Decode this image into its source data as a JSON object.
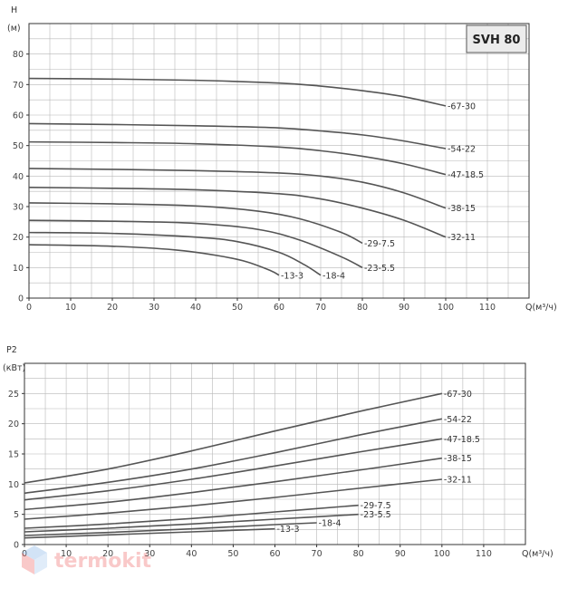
{
  "chart_data": [
    {
      "type": "line",
      "title": "SVH 80",
      "ylabel": "H",
      "yunit": "(м)",
      "xlabel": "Q(м³/ч)",
      "xlim": [
        0,
        120
      ],
      "ylim": [
        0,
        90
      ],
      "xticks": [
        0,
        10,
        20,
        30,
        40,
        50,
        60,
        70,
        80,
        90,
        100,
        110
      ],
      "yticks": [
        0,
        10,
        20,
        30,
        40,
        50,
        60,
        70,
        80
      ],
      "grid": true,
      "series": [
        {
          "name": "67-30",
          "x": [
            0,
            20,
            40,
            60,
            70,
            80,
            90,
            100
          ],
          "y": [
            72,
            71.8,
            71.4,
            70.5,
            69.5,
            68,
            66,
            63
          ]
        },
        {
          "name": "54-22",
          "x": [
            0,
            20,
            40,
            60,
            70,
            80,
            90,
            100
          ],
          "y": [
            57.2,
            56.9,
            56.5,
            55.8,
            54.8,
            53.5,
            51.5,
            49
          ]
        },
        {
          "name": "47-18.5",
          "x": [
            0,
            20,
            40,
            60,
            70,
            80,
            90,
            100
          ],
          "y": [
            51.2,
            51,
            50.6,
            49.5,
            48.3,
            46.5,
            44,
            40.5
          ]
        },
        {
          "name": "38-15",
          "x": [
            0,
            20,
            40,
            60,
            70,
            80,
            90,
            100
          ],
          "y": [
            42.5,
            42.2,
            41.8,
            41,
            40,
            38,
            34.5,
            29.5
          ]
        },
        {
          "name": "32-11",
          "x": [
            0,
            20,
            40,
            60,
            70,
            80,
            90,
            100
          ],
          "y": [
            36.3,
            36,
            35.5,
            34.2,
            32.5,
            29.5,
            25.5,
            20
          ]
        },
        {
          "name": "29-7.5",
          "x": [
            0,
            20,
            40,
            55,
            65,
            75,
            80
          ],
          "y": [
            31.2,
            30.9,
            30.2,
            28.5,
            26,
            21.5,
            18
          ]
        },
        {
          "name": "23-5.5",
          "x": [
            0,
            20,
            40,
            55,
            65,
            75,
            80
          ],
          "y": [
            25.5,
            25.2,
            24.5,
            22.5,
            19,
            13.5,
            10
          ]
        },
        {
          "name": "18-4",
          "x": [
            0,
            20,
            40,
            50,
            60,
            66,
            70
          ],
          "y": [
            21.5,
            21.2,
            20,
            18.5,
            15,
            11,
            7.5
          ]
        },
        {
          "name": "13-3",
          "x": [
            0,
            20,
            35,
            45,
            52,
            58,
            60
          ],
          "y": [
            17.5,
            17,
            15.8,
            14,
            12,
            9,
            7.5
          ]
        }
      ]
    },
    {
      "type": "line",
      "title": "",
      "ylabel": "P2",
      "yunit": "(кВт)",
      "xlabel": "Q(м³/ч)",
      "xlim": [
        0,
        120
      ],
      "ylim": [
        0,
        30
      ],
      "xticks": [
        0,
        10,
        20,
        30,
        40,
        50,
        60,
        70,
        80,
        90,
        100,
        110
      ],
      "yticks": [
        0,
        5,
        10,
        15,
        20,
        25
      ],
      "grid": true,
      "series": [
        {
          "name": "67-30",
          "x": [
            0,
            20,
            40,
            60,
            80,
            100
          ],
          "y": [
            10.2,
            12.5,
            15.5,
            18.8,
            22,
            25
          ]
        },
        {
          "name": "54-22",
          "x": [
            0,
            20,
            40,
            60,
            80,
            100
          ],
          "y": [
            8.5,
            10.3,
            12.5,
            15.2,
            18.1,
            20.8
          ]
        },
        {
          "name": "47-18.5",
          "x": [
            0,
            20,
            40,
            60,
            80,
            100
          ],
          "y": [
            7.4,
            8.9,
            10.8,
            13,
            15.3,
            17.5
          ]
        },
        {
          "name": "38-15",
          "x": [
            0,
            20,
            40,
            60,
            80,
            100
          ],
          "y": [
            5.8,
            7,
            8.6,
            10.4,
            12.3,
            14.3
          ]
        },
        {
          "name": "32-11",
          "x": [
            0,
            20,
            40,
            60,
            80,
            100
          ],
          "y": [
            4.2,
            5.2,
            6.4,
            7.8,
            9.3,
            10.8
          ]
        },
        {
          "name": "29-7.5",
          "x": [
            0,
            20,
            40,
            60,
            80
          ],
          "y": [
            2.7,
            3.4,
            4.3,
            5.4,
            6.5
          ]
        },
        {
          "name": "23-5.5",
          "x": [
            0,
            20,
            40,
            60,
            80
          ],
          "y": [
            2.1,
            2.7,
            3.4,
            4.2,
            5
          ]
        },
        {
          "name": "18-4",
          "x": [
            0,
            20,
            40,
            60,
            70
          ],
          "y": [
            1.5,
            2,
            2.6,
            3.3,
            3.6
          ]
        },
        {
          "name": "13-3",
          "x": [
            0,
            20,
            40,
            60
          ],
          "y": [
            1.1,
            1.6,
            2.1,
            2.6
          ]
        }
      ]
    }
  ],
  "watermark": {
    "text": "termokit",
    "icon": "cube-logo-icon"
  }
}
